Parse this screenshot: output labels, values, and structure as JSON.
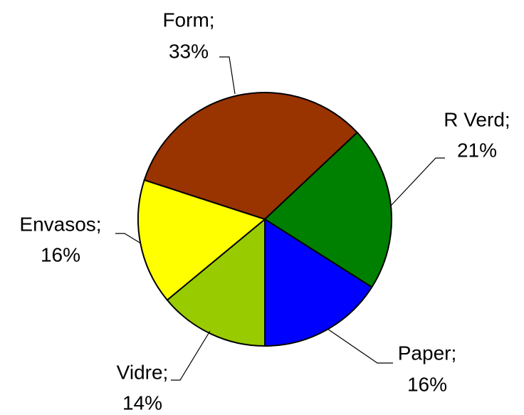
{
  "chart_data": {
    "type": "pie",
    "categories": [
      "Form;",
      "R Verd;",
      "Paper;",
      "Vidre;",
      "Envasos;"
    ],
    "values": [
      33,
      21,
      16,
      14,
      16
    ],
    "value_labels": [
      "33%",
      "21%",
      "16%",
      "14%",
      "16%"
    ],
    "colors": [
      "#993300",
      "#008000",
      "#0000ff",
      "#99cc00",
      "#ffff00"
    ]
  }
}
